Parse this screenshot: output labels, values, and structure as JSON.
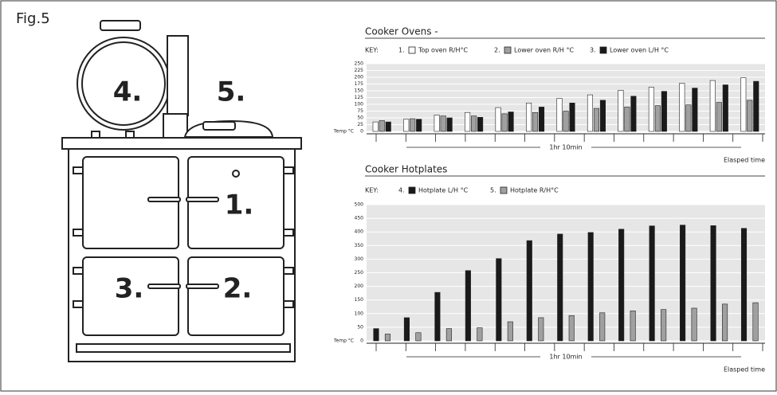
{
  "figure_label": "Fig.5",
  "diagram": {
    "labels": [
      "4.",
      "5.",
      "1.",
      "2.",
      "3."
    ]
  },
  "chart_data": [
    {
      "type": "bar",
      "title": "Cooker Ovens -",
      "key_label": "KEY:",
      "ylabel": "Temp °C",
      "xlabel": "1hr 10min",
      "time_label": "Elasped time",
      "categories": [
        null,
        null,
        null,
        null,
        null,
        null,
        null,
        null,
        null,
        null,
        null,
        null,
        null
      ],
      "series": [
        {
          "number": "1.",
          "name": "Top oven R/H°C",
          "color": "#ffffff",
          "values": [
            35,
            45,
            60,
            70,
            88,
            105,
            122,
            135,
            152,
            163,
            178,
            188,
            198
          ]
        },
        {
          "number": "2.",
          "name": "Lower oven R/H °C",
          "color": "#a0a0a0",
          "values": [
            40,
            47,
            57,
            57,
            65,
            70,
            75,
            85,
            90,
            95,
            98,
            107,
            115
          ]
        },
        {
          "number": "3.",
          "name": "Lower oven L/H °C",
          "color": "#1a1a1a",
          "values": [
            35,
            45,
            50,
            52,
            72,
            90,
            105,
            115,
            130,
            148,
            160,
            172,
            185
          ]
        }
      ],
      "ylim": [
        0,
        250
      ],
      "yticks": [
        0,
        25,
        50,
        75,
        100,
        125,
        150,
        175,
        200,
        225,
        250
      ],
      "grid": true
    },
    {
      "type": "bar",
      "title": "Cooker Hotplates",
      "key_label": "KEY:",
      "ylabel": "Temp °C",
      "xlabel": "1hr 10min",
      "time_label": "Elasped time",
      "categories": [
        null,
        null,
        null,
        null,
        null,
        null,
        null,
        null,
        null,
        null,
        null,
        null,
        null
      ],
      "series": [
        {
          "number": "4.",
          "name": "Hotplate L/H °C",
          "color": "#1a1a1a",
          "values": [
            45,
            85,
            178,
            258,
            302,
            368,
            392,
            398,
            410,
            422,
            425,
            423,
            413
          ]
        },
        {
          "number": "5.",
          "name": "Hotplate R/H°C",
          "color": "#a0a0a0",
          "values": [
            25,
            30,
            45,
            48,
            70,
            85,
            93,
            103,
            110,
            115,
            120,
            135,
            140
          ]
        }
      ],
      "ylim": [
        0,
        500
      ],
      "yticks": [
        0,
        50,
        100,
        150,
        200,
        250,
        300,
        350,
        400,
        450,
        500
      ],
      "grid": true
    }
  ]
}
